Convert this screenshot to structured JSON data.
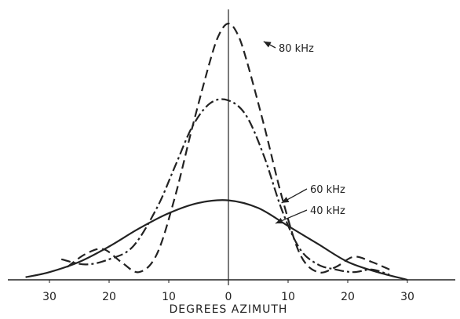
{
  "chart_data": {
    "type": "line",
    "title": "",
    "xlabel": "DEGREES AZIMUTH",
    "ylabel": "",
    "xlim": [
      -33,
      33
    ],
    "ylim": [
      0,
      1
    ],
    "grid": false,
    "legend": "none",
    "x_ticks": [
      {
        "value": -30,
        "label": "30"
      },
      {
        "value": -20,
        "label": "20"
      },
      {
        "value": -10,
        "label": "10"
      },
      {
        "value": 0,
        "label": "0"
      },
      {
        "value": 10,
        "label": "10"
      },
      {
        "value": 20,
        "label": "20"
      },
      {
        "value": 30,
        "label": "30"
      }
    ],
    "series": [
      {
        "name": "80kHz",
        "line_style": "dashed",
        "x": [
          -27,
          -24,
          -21,
          -18,
          -15,
          -12,
          -9,
          -6,
          -3,
          -1.5,
          0,
          1.5,
          3,
          6,
          9,
          12,
          15,
          18,
          21,
          24,
          27
        ],
        "y": [
          0.05,
          0.1,
          0.12,
          0.07,
          0.03,
          0.1,
          0.32,
          0.6,
          0.86,
          0.96,
          1.0,
          0.96,
          0.86,
          0.6,
          0.32,
          0.1,
          0.03,
          0.05,
          0.09,
          0.07,
          0.04
        ]
      },
      {
        "name": "60kHz",
        "line_style": "dash-dot",
        "x": [
          -28,
          -24,
          -20,
          -16,
          -12,
          -9,
          -6,
          -3,
          0,
          3,
          6,
          9,
          12,
          15,
          18,
          21,
          24,
          27
        ],
        "y": [
          0.08,
          0.06,
          0.08,
          0.13,
          0.28,
          0.44,
          0.6,
          0.69,
          0.7,
          0.64,
          0.48,
          0.27,
          0.12,
          0.06,
          0.04,
          0.03,
          0.04,
          0.02
        ]
      },
      {
        "name": "40kHz",
        "line_style": "solid",
        "x": [
          -34,
          -30,
          -25,
          -20,
          -15,
          -10,
          -5,
          0,
          5,
          10,
          15,
          20,
          25,
          30
        ],
        "y": [
          0.01,
          0.03,
          0.07,
          0.13,
          0.2,
          0.26,
          0.3,
          0.31,
          0.28,
          0.21,
          0.14,
          0.07,
          0.03,
          0.0
        ]
      }
    ],
    "annotations": [
      {
        "series": "80kHz",
        "text": "80 kHz",
        "point_x": 5.5,
        "point_y": 0.93
      },
      {
        "series": "60kHz",
        "text": "60 kHz",
        "point_x": 8.5,
        "point_y": 0.3
      },
      {
        "series": "40kHz",
        "text": "40 kHz",
        "point_x": 7.5,
        "point_y": 0.22
      }
    ]
  }
}
